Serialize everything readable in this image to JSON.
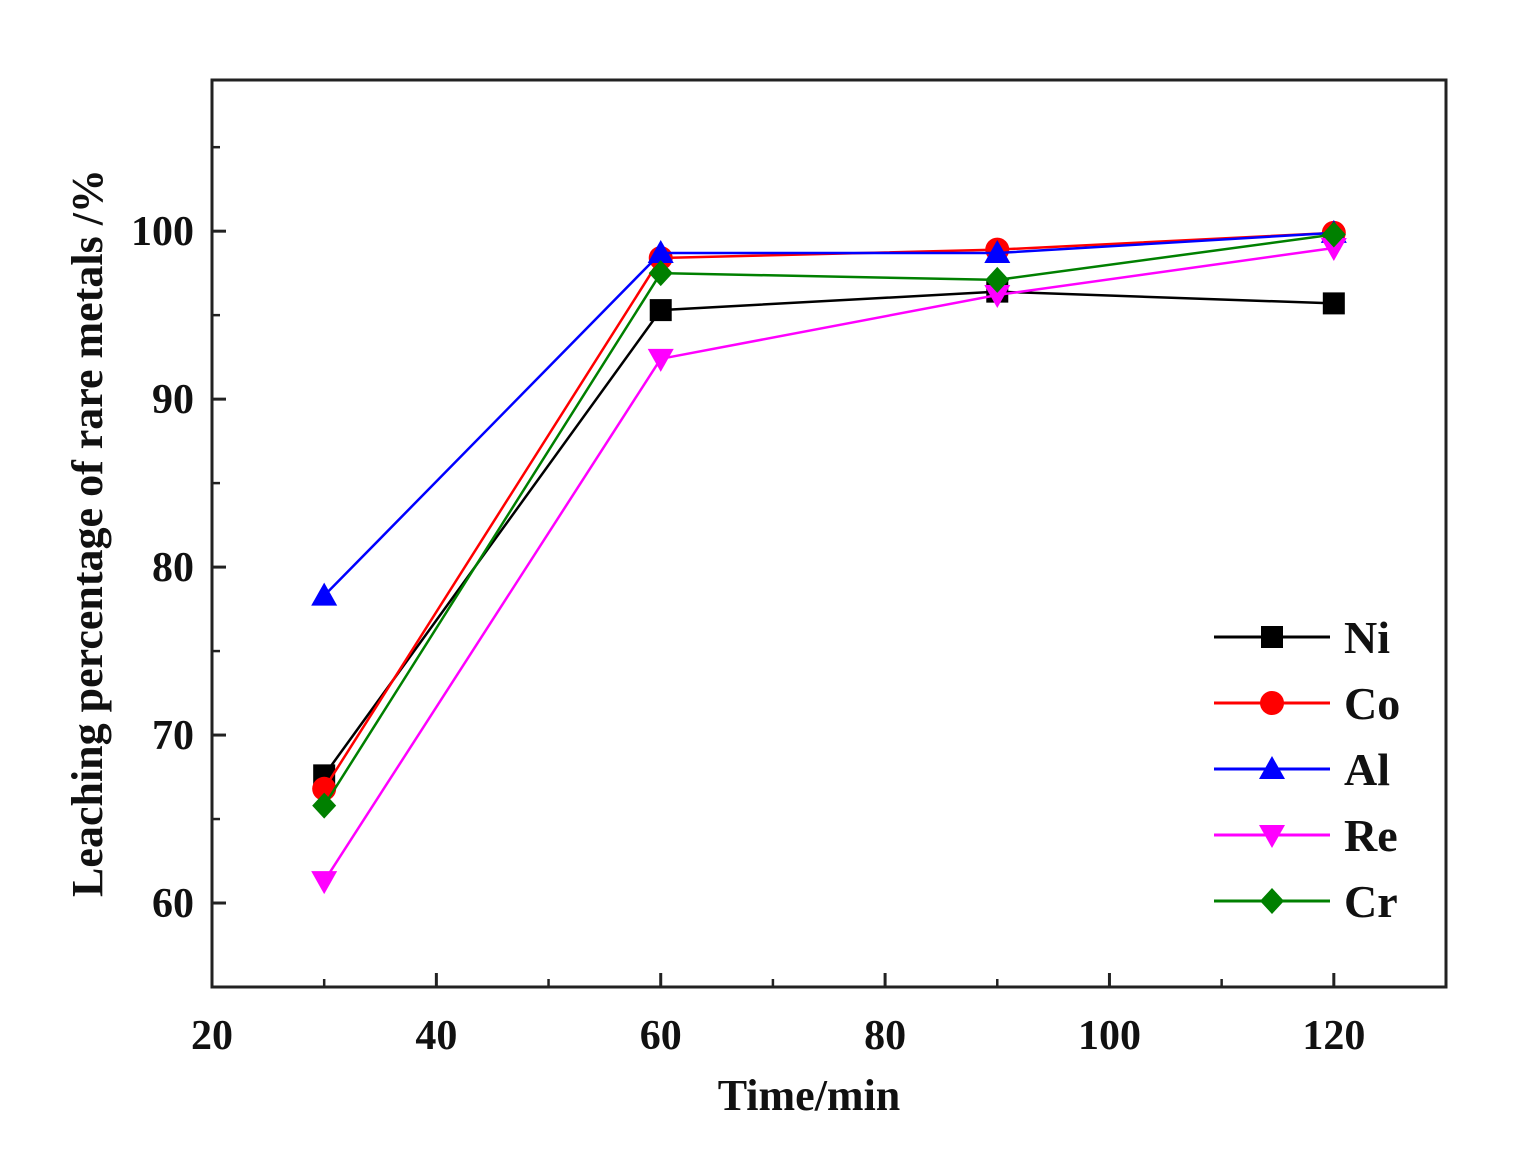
{
  "chart_data": {
    "type": "line",
    "title": "",
    "xlabel": "Time/min",
    "ylabel": "Leaching percentage of rare metals /%",
    "xlim": [
      20,
      130
    ],
    "ylim": [
      55,
      109
    ],
    "xticks": [
      20,
      40,
      60,
      80,
      100,
      120
    ],
    "yticks": [
      60,
      70,
      80,
      90,
      100
    ],
    "x": [
      30,
      60,
      90,
      120
    ],
    "legend_position": "bottom-right",
    "grid": false,
    "series": [
      {
        "name": "Ni",
        "color": "#000000",
        "marker": "square",
        "values": [
          67.6,
          95.3,
          96.4,
          95.7
        ]
      },
      {
        "name": "Co",
        "color": "#ff0000",
        "marker": "circle",
        "values": [
          66.8,
          98.4,
          98.9,
          99.9
        ]
      },
      {
        "name": "Al",
        "color": "#0000ff",
        "marker": "triangle-up",
        "values": [
          78.3,
          98.7,
          98.7,
          99.9
        ]
      },
      {
        "name": "Re",
        "color": "#ff00ff",
        "marker": "triangle-down",
        "values": [
          61.3,
          92.4,
          96.2,
          99.0
        ]
      },
      {
        "name": "Cr",
        "color": "#008000",
        "marker": "diamond",
        "values": [
          65.8,
          97.5,
          97.1,
          99.8
        ]
      }
    ]
  }
}
